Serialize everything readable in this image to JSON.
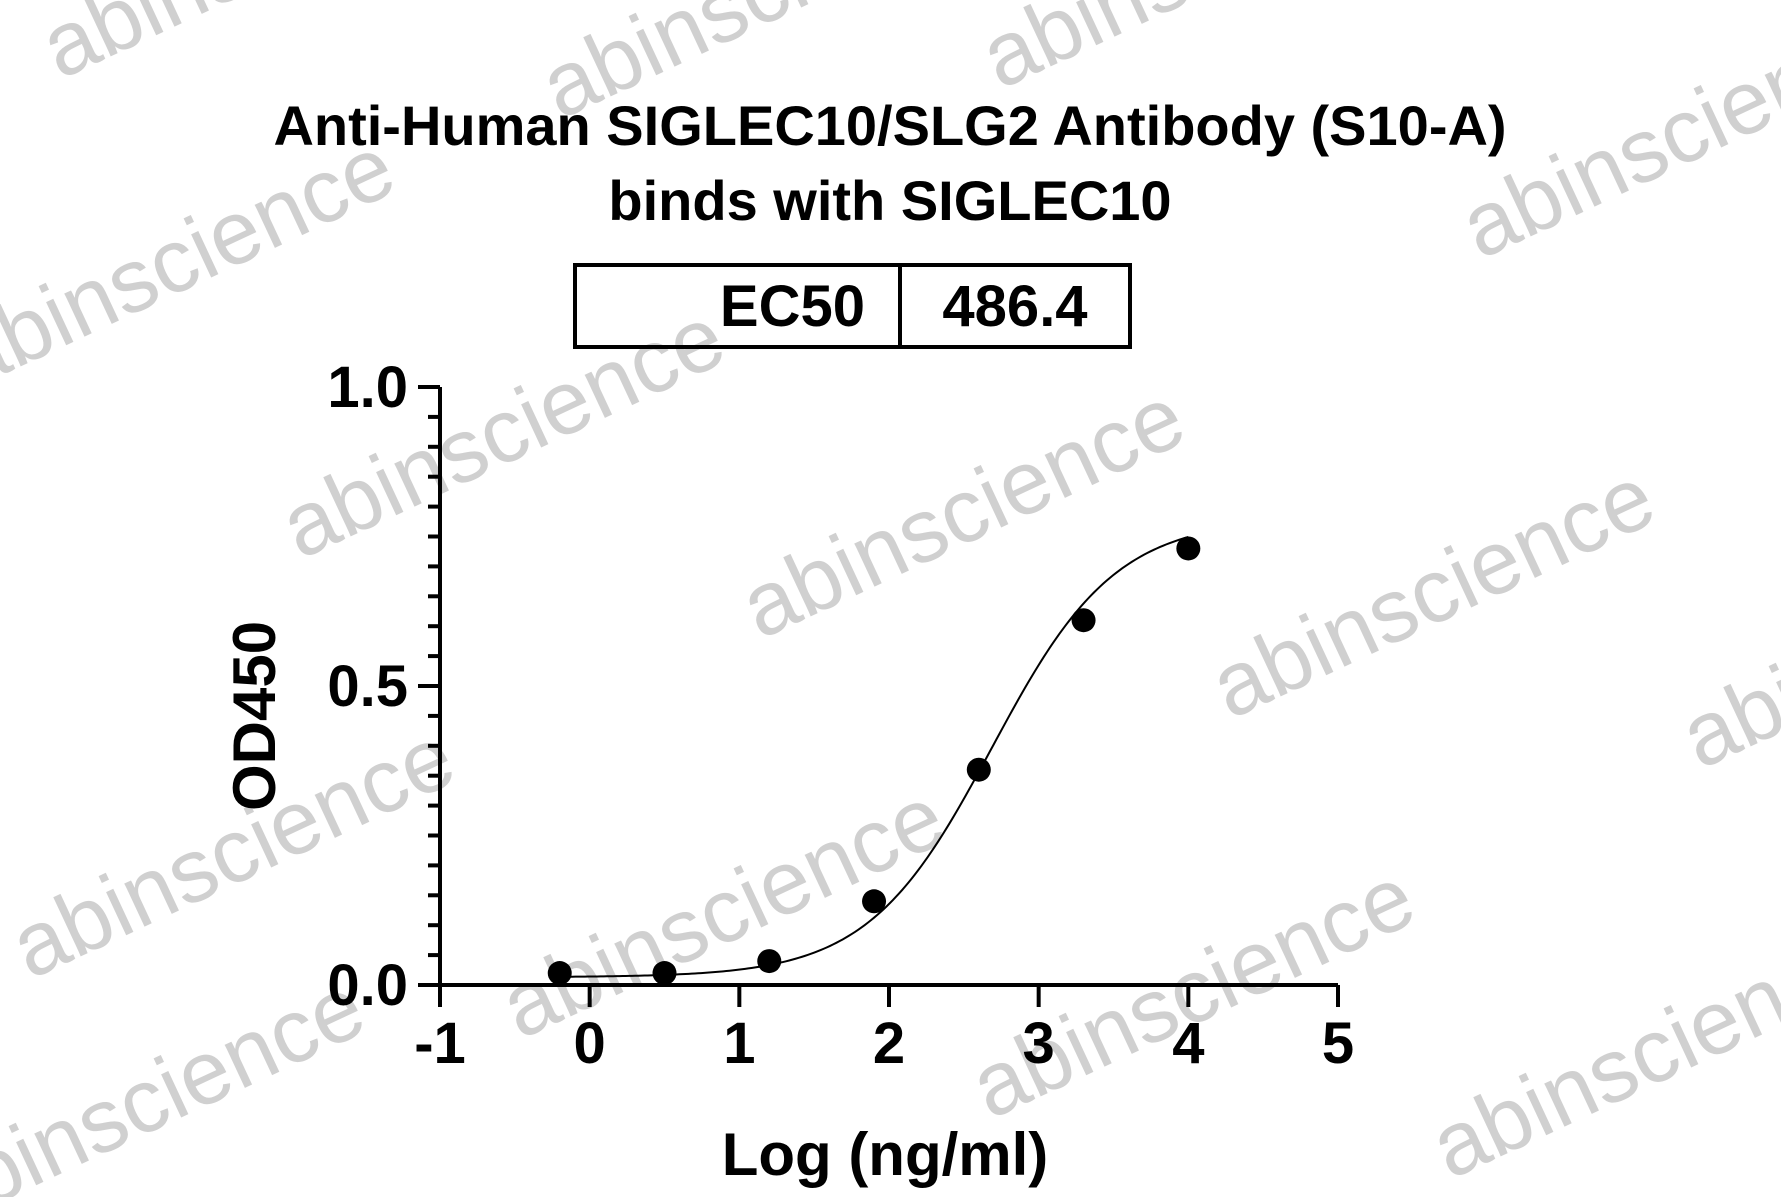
{
  "watermark_text": "abinscience",
  "chart_data": {
    "type": "scatter",
    "title_lines": [
      "Anti-Human SIGLEC10/SLG2 Antibody (S10-A)",
      "binds with SIGLEC10"
    ],
    "xlabel": "Log (ng/ml)",
    "ylabel": "OD450",
    "xlim": [
      -1,
      5
    ],
    "ylim": [
      0,
      1.0
    ],
    "x_ticks": [
      "-1",
      "0",
      "1",
      "2",
      "3",
      "4",
      "5"
    ],
    "y_ticks": [
      "0.0",
      "0.5",
      "1.0"
    ],
    "grid": false,
    "fit": "four-parameter logistic curve",
    "ec50_table": {
      "label": "EC50",
      "value": "486.4"
    },
    "series": [
      {
        "x": [
          -0.2,
          0.5,
          1.2,
          1.9,
          2.6,
          3.3,
          4.0
        ],
        "y": [
          0.02,
          0.02,
          0.04,
          0.14,
          0.36,
          0.61,
          0.73
        ]
      }
    ]
  }
}
